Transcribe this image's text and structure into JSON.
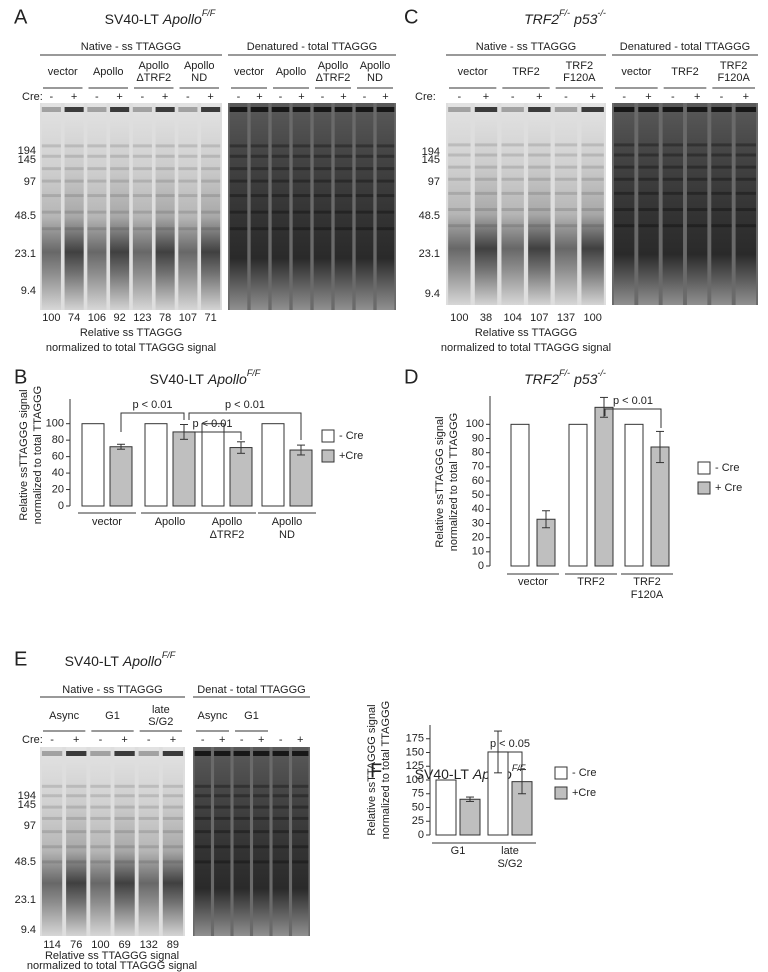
{
  "gels": [
    {
      "label": "A",
      "title": [
        {
          "text": "SV40-LT"
        },
        {
          "text": "Apollo",
          "sup": "F/F"
        }
      ],
      "native": {
        "header": "Native - ss TTAGGG",
        "groups": [
          [
            "vector"
          ],
          [
            "Apollo"
          ],
          [
            "Apollo",
            "ΔTRF2"
          ],
          [
            "Apollo",
            "ND"
          ]
        ]
      },
      "denatured": {
        "header": "Denatured - total TTAGGG",
        "groups": [
          [
            "vector"
          ],
          [
            "Apollo"
          ],
          [
            "Apollo",
            "ΔTRF2"
          ],
          [
            "Apollo",
            "ND"
          ]
        ]
      },
      "cre": {
        "label": "Cre:",
        "signs": [
          "-",
          "+"
        ]
      },
      "markers": [
        194,
        145,
        97,
        48.5,
        23.1,
        9.4
      ],
      "lane_values": [
        100,
        74,
        106,
        92,
        123,
        78,
        107,
        71
      ],
      "caption": [
        "Relative ss TTAGGG",
        "normalized to total TTAGGG signal"
      ]
    },
    {
      "label": "C",
      "title": [
        {
          "text": "TRF2",
          "sup": "F/-"
        },
        {
          "text": "p53",
          "sup": "-/-"
        }
      ],
      "native": {
        "header": "Native - ss TTAGGG",
        "groups": [
          [
            "vector"
          ],
          [
            "TRF2"
          ],
          [
            "TRF2",
            "F120A"
          ]
        ]
      },
      "denatured": {
        "header": "Denatured - total TTAGGG",
        "groups": [
          [
            "vector"
          ],
          [
            "TRF2"
          ],
          [
            "TRF2",
            "F120A"
          ]
        ]
      },
      "cre": {
        "label": "Cre:",
        "signs": [
          "-",
          "+"
        ]
      },
      "markers": [
        194,
        145,
        97,
        48.5,
        23.1,
        9.4
      ],
      "lane_values": [
        100,
        38,
        104,
        107,
        137,
        100
      ],
      "caption": [
        "Relative ss TTAGGG",
        "normalized to total TTAGGG signal"
      ]
    },
    {
      "label": "E",
      "title": [
        {
          "text": "SV40-LT"
        },
        {
          "text": "Apollo",
          "sup": "F/F"
        }
      ],
      "native": {
        "header": "Native - ss TTAGGG",
        "groups": [
          [
            "Async"
          ],
          [
            "G1"
          ],
          [
            "late",
            "S/G2"
          ]
        ]
      },
      "denatured": {
        "header": "Denat - total TTAGGG",
        "groups": [
          [
            "Async"
          ],
          [
            "G1"
          ]
        ]
      },
      "cre": {
        "label": "Cre:",
        "signs": [
          "-",
          "+"
        ]
      },
      "markers": [
        194,
        145,
        97,
        48.5,
        23.1,
        9.4
      ],
      "lane_values": [
        114,
        76,
        100,
        69,
        132,
        89
      ],
      "caption": [
        "Relative ss TTAGGG signal",
        "normalized to total TTAGGG signal"
      ]
    }
  ],
  "chart_data": [
    {
      "type": "bar",
      "label": "B",
      "title": [
        {
          "text": "SV40-LT"
        },
        {
          "text": "Apollo",
          "sup": "F/F"
        }
      ],
      "ylabel": [
        "Relative ssTTAGGG signal",
        "normalized to total TTAGGG"
      ],
      "categories": [
        [
          "vector"
        ],
        [
          "Apollo"
        ],
        [
          "Apollo",
          "ΔTRF2"
        ],
        [
          "Apollo",
          "ND"
        ]
      ],
      "series": [
        {
          "name": "- Cre",
          "color": "#ffffff",
          "values": [
            100,
            100,
            100,
            100
          ]
        },
        {
          "name": "+Cre",
          "color": "#bfbfbf",
          "values": [
            72,
            90,
            71,
            68
          ],
          "errors": [
            3,
            9,
            7,
            6
          ]
        }
      ],
      "ylim": [
        0,
        130
      ],
      "yticks": [
        0,
        20,
        40,
        60,
        80,
        100
      ],
      "annotations": [
        "p < 0.01",
        "p < 0.01",
        "p < 0.01"
      ]
    },
    {
      "type": "bar",
      "label": "D",
      "title": [
        {
          "text": "TRF2",
          "sup": "F/-"
        },
        {
          "text": "p53",
          "sup": "-/-"
        }
      ],
      "ylabel": [
        "Relative ssTTAGGG signal",
        "normalized to total TTAGGG"
      ],
      "categories": [
        [
          "vector"
        ],
        [
          "TRF2"
        ],
        [
          "TRF2",
          "F120A"
        ]
      ],
      "series": [
        {
          "name": "- Cre",
          "color": "#ffffff",
          "values": [
            100,
            100,
            100
          ]
        },
        {
          "name": "+ Cre",
          "color": "#bfbfbf",
          "values": [
            33,
            112,
            84
          ],
          "errors": [
            6,
            7,
            11
          ]
        }
      ],
      "ylim": [
        0,
        120
      ],
      "yticks": [
        0,
        10,
        20,
        30,
        40,
        50,
        60,
        70,
        80,
        90,
        100
      ],
      "annotations": [
        "p < 0.01"
      ]
    },
    {
      "type": "bar",
      "label": "F",
      "title": [
        {
          "text": "SV40-LT"
        },
        {
          "text": "Apollo",
          "sup": "F/F"
        }
      ],
      "ylabel": [
        "Relative ssTTAGGG signal",
        "normalized to total TTAGGG"
      ],
      "categories": [
        [
          "G1"
        ],
        [
          "late",
          "S/G2"
        ]
      ],
      "series": [
        {
          "name": "- Cre",
          "color": "#ffffff",
          "values": [
            100,
            151
          ],
          "errors": [
            null,
            38
          ]
        },
        {
          "name": "+Cre",
          "color": "#bfbfbf",
          "values": [
            65,
            97
          ],
          "errors": [
            4,
            22
          ]
        }
      ],
      "ylim": [
        0,
        200
      ],
      "yticks": [
        0,
        25,
        50,
        75,
        100,
        125,
        150,
        175
      ],
      "annotations": [
        "p < 0.05"
      ]
    }
  ]
}
